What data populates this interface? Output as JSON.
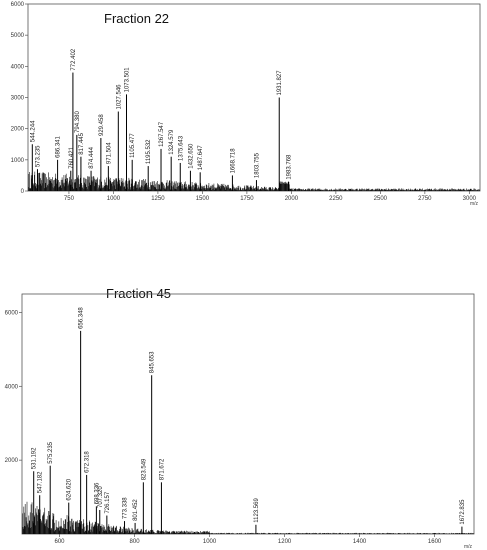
{
  "chart_data": [
    {
      "type": "line",
      "title": "Fraction 22",
      "xunit": "m/z",
      "xlim": [
        520,
        3060
      ],
      "ylim": [
        0,
        6000
      ],
      "xticks": [
        750,
        1000,
        1250,
        1500,
        1750,
        2000,
        2250,
        2500,
        2750,
        3000
      ],
      "yticks": [
        0,
        1000,
        2000,
        3000,
        4000,
        5000,
        6000
      ],
      "peaks": [
        {
          "label": "544.244",
          "x": 544.2,
          "y": 1500
        },
        {
          "label": "573.235",
          "x": 573.2,
          "y": 700
        },
        {
          "label": "686.341",
          "x": 686.3,
          "y": 1000
        },
        {
          "label": "760.421",
          "x": 760.4,
          "y": 650
        },
        {
          "label": "772.402",
          "x": 772.4,
          "y": 3800
        },
        {
          "label": "794.380",
          "x": 794.4,
          "y": 1800
        },
        {
          "label": "817.445",
          "x": 817.4,
          "y": 1100
        },
        {
          "label": "874.444",
          "x": 874.4,
          "y": 650
        },
        {
          "label": "929.458",
          "x": 929.5,
          "y": 1700
        },
        {
          "label": "971.504",
          "x": 971.5,
          "y": 800
        },
        {
          "label": "1027.546",
          "x": 1027.5,
          "y": 2550
        },
        {
          "label": "1073.501",
          "x": 1073.5,
          "y": 3100
        },
        {
          "label": "1105.477",
          "x": 1105.5,
          "y": 1000
        },
        {
          "label": "1195.532",
          "x": 1195.5,
          "y": 800
        },
        {
          "label": "1267.547",
          "x": 1267.5,
          "y": 1350
        },
        {
          "label": "1324.579",
          "x": 1324.6,
          "y": 1100
        },
        {
          "label": "1375.643",
          "x": 1375.6,
          "y": 900
        },
        {
          "label": "1432.650",
          "x": 1432.7,
          "y": 650
        },
        {
          "label": "1487.647",
          "x": 1487.6,
          "y": 600
        },
        {
          "label": "1668.718",
          "x": 1668.7,
          "y": 500
        },
        {
          "label": "1803.755",
          "x": 1803.8,
          "y": 350
        },
        {
          "label": "1931.827",
          "x": 1931.8,
          "y": 3000
        },
        {
          "label": "1983.768",
          "x": 1983.8,
          "y": 300
        }
      ]
    },
    {
      "type": "line",
      "title": "Fraction 45",
      "xunit": "m/z",
      "xlim": [
        500,
        1705
      ],
      "ylim": [
        0,
        6500
      ],
      "xticks": [
        600,
        800,
        1000,
        1200,
        1400,
        1600
      ],
      "yticks": [
        2000,
        4000,
        6000
      ],
      "peaks": [
        {
          "label": "531.192",
          "x": 531.2,
          "y": 1700
        },
        {
          "label": "547.182",
          "x": 547.2,
          "y": 1050
        },
        {
          "label": "575.235",
          "x": 575.2,
          "y": 1850
        },
        {
          "label": "624.620",
          "x": 624.6,
          "y": 850
        },
        {
          "label": "656.348",
          "x": 656.3,
          "y": 5500
        },
        {
          "label": "672.318",
          "x": 672.3,
          "y": 1600
        },
        {
          "label": "698.336",
          "x": 698.3,
          "y": 750
        },
        {
          "label": "707.320",
          "x": 707.3,
          "y": 650
        },
        {
          "label": "726.157",
          "x": 726.2,
          "y": 500
        },
        {
          "label": "773.338",
          "x": 773.3,
          "y": 350
        },
        {
          "label": "801.452",
          "x": 801.5,
          "y": 300
        },
        {
          "label": "823.549",
          "x": 823.5,
          "y": 1400
        },
        {
          "label": "845.653",
          "x": 845.7,
          "y": 4300
        },
        {
          "label": "871.672",
          "x": 871.7,
          "y": 1400
        },
        {
          "label": "1123.569",
          "x": 1123.6,
          "y": 250
        },
        {
          "label": "1672.835",
          "x": 1672.8,
          "y": 200
        }
      ]
    }
  ]
}
